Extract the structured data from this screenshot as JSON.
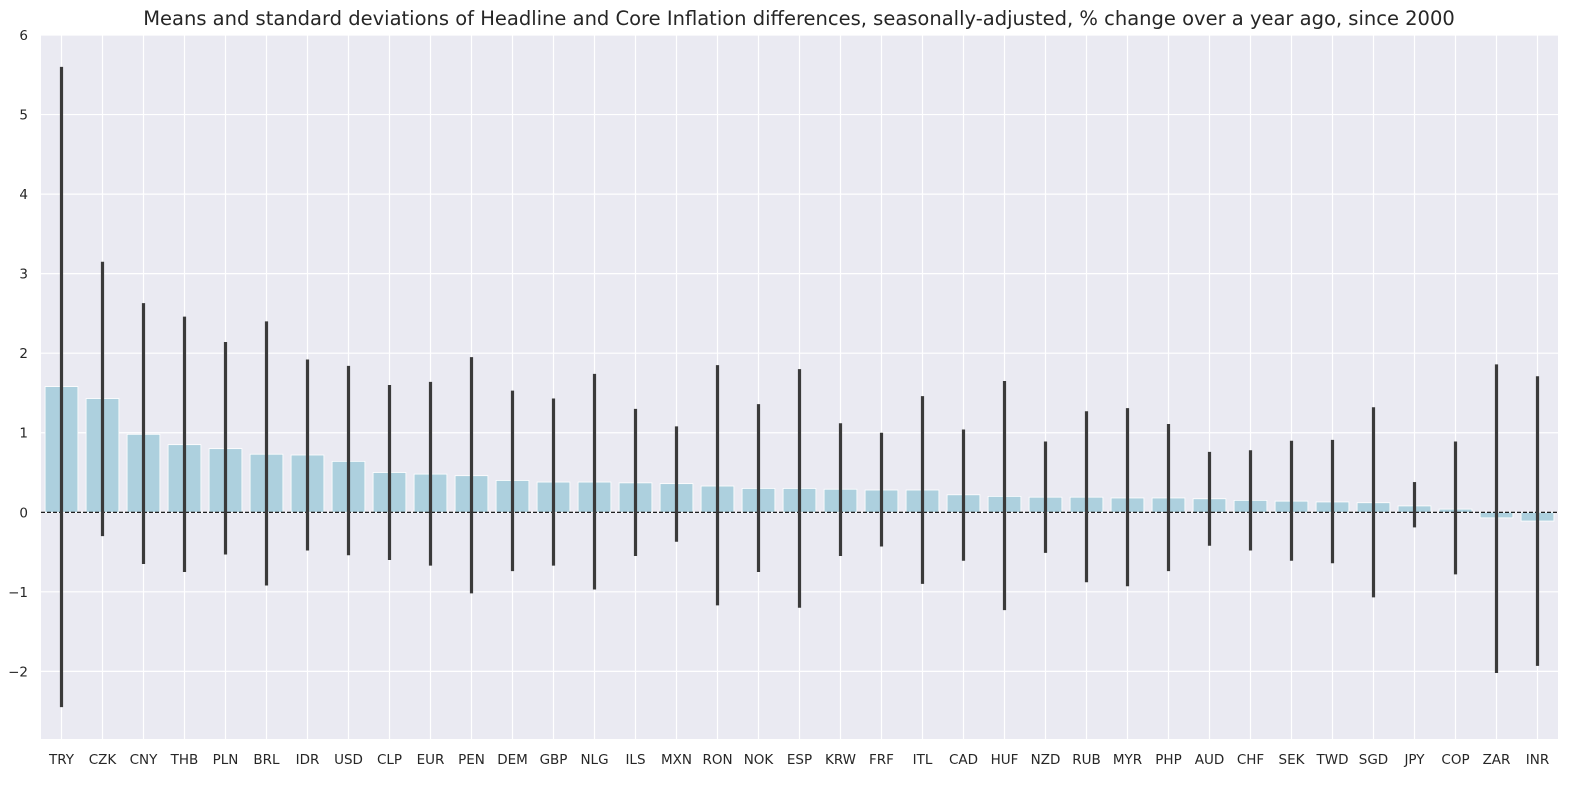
{
  "chart_data": {
    "type": "bar",
    "title": "Means and standard deviations of Headline and Core Inflation differences, seasonally-adjusted, % change over a year ago, since 2000",
    "xlabel": "",
    "ylabel": "",
    "ylim": [
      -2.85,
      6.0
    ],
    "y_ticks": [
      -2,
      -1,
      0,
      1,
      2,
      3,
      4,
      5,
      6
    ],
    "y_tick_labels": [
      "−2",
      "−1",
      "0",
      "1",
      "2",
      "3",
      "4",
      "5",
      "6"
    ],
    "categories": [
      "TRY",
      "CZK",
      "CNY",
      "THB",
      "PLN",
      "BRL",
      "IDR",
      "USD",
      "CLP",
      "EUR",
      "PEN",
      "DEM",
      "GBP",
      "NLG",
      "ILS",
      "MXN",
      "RON",
      "NOK",
      "ESP",
      "KRW",
      "FRF",
      "ITL",
      "CAD",
      "HUF",
      "NZD",
      "RUB",
      "MYR",
      "PHP",
      "AUD",
      "CHF",
      "SEK",
      "TWD",
      "SGD",
      "JPY",
      "COP",
      "ZAR",
      "INR"
    ],
    "values": [
      1.58,
      1.43,
      0.98,
      0.85,
      0.8,
      0.73,
      0.72,
      0.64,
      0.5,
      0.48,
      0.46,
      0.4,
      0.38,
      0.38,
      0.37,
      0.36,
      0.33,
      0.3,
      0.3,
      0.29,
      0.28,
      0.28,
      0.22,
      0.2,
      0.19,
      0.19,
      0.18,
      0.18,
      0.17,
      0.15,
      0.14,
      0.13,
      0.12,
      0.08,
      0.04,
      -0.07,
      -0.11
    ],
    "error_low": [
      -2.45,
      -0.3,
      -0.65,
      -0.75,
      -0.53,
      -0.92,
      -0.48,
      -0.54,
      -0.6,
      -0.67,
      -1.02,
      -0.74,
      -0.67,
      -0.97,
      -0.55,
      -0.37,
      -1.17,
      -0.75,
      -1.2,
      -0.55,
      -0.43,
      -0.9,
      -0.61,
      -1.23,
      -0.51,
      -0.88,
      -0.93,
      -0.74,
      -0.42,
      -0.48,
      -0.61,
      -0.64,
      -1.07,
      -0.19,
      -0.78,
      -2.02,
      -1.93
    ],
    "error_high": [
      5.6,
      3.15,
      2.63,
      2.46,
      2.14,
      2.4,
      1.92,
      1.84,
      1.6,
      1.64,
      1.95,
      1.53,
      1.43,
      1.74,
      1.3,
      1.08,
      1.85,
      1.36,
      1.8,
      1.12,
      1.0,
      1.46,
      1.04,
      1.65,
      0.89,
      1.27,
      1.31,
      1.11,
      0.76,
      0.78,
      0.9,
      0.91,
      1.32,
      0.38,
      0.89,
      1.86,
      1.71
    ],
    "bar_color": "#add0de",
    "error_color": "#3a3a3a",
    "background_color": "#eaeaf2",
    "grid_color": "#ffffff",
    "zero_line": "dashed",
    "grid": true,
    "legend": "none"
  }
}
